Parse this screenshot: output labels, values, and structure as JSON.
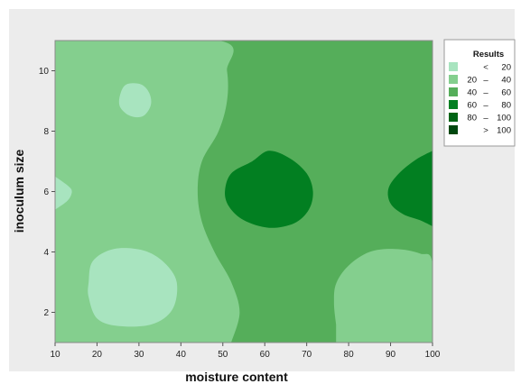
{
  "chart_data": {
    "type": "heatmap",
    "subtype": "contour",
    "xlabel": "moisture content",
    "ylabel": "inoculum size",
    "xlim": [
      10,
      100
    ],
    "ylim": [
      1,
      11
    ],
    "xticks": [
      10,
      20,
      30,
      40,
      50,
      60,
      70,
      80,
      90,
      100
    ],
    "yticks": [
      2,
      4,
      6,
      8,
      10
    ],
    "legend": {
      "title": "Results",
      "placement": "right",
      "entries": [
        {
          "low": "",
          "sep": "<",
          "high": "20",
          "color": "#a8e4bf"
        },
        {
          "low": "20",
          "sep": "–",
          "high": "40",
          "color": "#84cf8e"
        },
        {
          "low": "40",
          "sep": "–",
          "high": "60",
          "color": "#55ae5a"
        },
        {
          "low": "60",
          "sep": "–",
          "high": "80",
          "color": "#027f21"
        },
        {
          "low": "80",
          "sep": "–",
          "high": "100",
          "color": "#006415"
        },
        {
          "low": "",
          "sep": ">",
          "high": "100",
          "color": "#00470f"
        }
      ]
    },
    "regions": [
      {
        "level": "20 – 40",
        "color": "#84cf8e",
        "points": [
          [
            10,
            11
          ],
          [
            49,
            11
          ],
          [
            51,
            10
          ],
          [
            51,
            9
          ],
          [
            49,
            8
          ],
          [
            45,
            7
          ],
          [
            44,
            6
          ],
          [
            45,
            5
          ],
          [
            48,
            4
          ],
          [
            52,
            3
          ],
          [
            54,
            2
          ],
          [
            52,
            1
          ],
          [
            10,
            1
          ]
        ]
      },
      {
        "level": "< 20",
        "color": "#a8e4bf",
        "points": [
          [
            25.5,
            9.2
          ],
          [
            27,
            9.55
          ],
          [
            30.5,
            9.55
          ],
          [
            32.5,
            9.25
          ],
          [
            32.8,
            8.85
          ],
          [
            31,
            8.5
          ],
          [
            28,
            8.5
          ],
          [
            25.5,
            8.8
          ]
        ]
      },
      {
        "level": "< 20",
        "color": "#a8e4bf",
        "points": [
          [
            10,
            6.5
          ],
          [
            13,
            6.2
          ],
          [
            14,
            6
          ],
          [
            13,
            5.7
          ],
          [
            10,
            5.4
          ]
        ]
      },
      {
        "level": "< 20",
        "color": "#a8e4bf",
        "points": [
          [
            18,
            3
          ],
          [
            19,
            3.7
          ],
          [
            24,
            4.1
          ],
          [
            31,
            4.05
          ],
          [
            36,
            3.65
          ],
          [
            39,
            3
          ],
          [
            38,
            2.1
          ],
          [
            33,
            1.6
          ],
          [
            25,
            1.55
          ],
          [
            20,
            1.8
          ],
          [
            18,
            2.5
          ]
        ]
      },
      {
        "level": "20 – 40",
        "color": "#84cf8e",
        "points": [
          [
            77,
            1
          ],
          [
            100,
            1
          ],
          [
            100,
            3.6
          ],
          [
            97,
            3.95
          ],
          [
            91,
            4.1
          ],
          [
            85,
            4
          ],
          [
            80,
            3.55
          ],
          [
            77,
            2.95
          ],
          [
            76.5,
            2.3
          ],
          [
            77,
            1.6
          ]
        ]
      },
      {
        "level": "60 – 80",
        "color": "#027f21",
        "points": [
          [
            57,
            7
          ],
          [
            61,
            7.35
          ],
          [
            66,
            7.1
          ],
          [
            70,
            6.6
          ],
          [
            71.5,
            6
          ],
          [
            70.5,
            5.4
          ],
          [
            67,
            4.95
          ],
          [
            61,
            4.8
          ],
          [
            55,
            5.05
          ],
          [
            51.5,
            5.5
          ],
          [
            50.5,
            6
          ],
          [
            52,
            6.6
          ]
        ]
      },
      {
        "level": "60 – 80",
        "color": "#027f21",
        "points": [
          [
            100,
            7.35
          ],
          [
            96,
            7.05
          ],
          [
            92,
            6.6
          ],
          [
            89.5,
            6.1
          ],
          [
            90,
            5.6
          ],
          [
            93,
            5.25
          ],
          [
            97,
            5.05
          ],
          [
            100,
            4.85
          ]
        ]
      }
    ],
    "background_level": "40 – 60",
    "background_color": "#55ae5a"
  }
}
